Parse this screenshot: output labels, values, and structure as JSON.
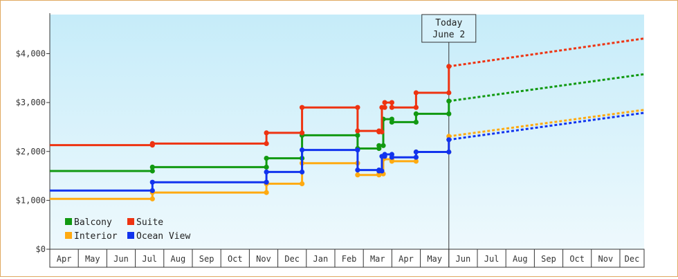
{
  "chart_data": {
    "type": "line",
    "title": "",
    "xlabel": "",
    "ylabel": "",
    "ylim": [
      0,
      4800
    ],
    "y_ticks": [
      {
        "value": 0,
        "label": "$0"
      },
      {
        "value": 1000,
        "label": "$1,000"
      },
      {
        "value": 2000,
        "label": "$2,000"
      },
      {
        "value": 3000,
        "label": "$3,000"
      },
      {
        "value": 4000,
        "label": "$4,000"
      }
    ],
    "x_months": [
      "Apr",
      "May",
      "Jun",
      "Jul",
      "Aug",
      "Sep",
      "Oct",
      "Nov",
      "Dec",
      "Jan",
      "Feb",
      "Mar",
      "Apr",
      "May",
      "Jun",
      "Jul",
      "Aug",
      "Sep",
      "Oct",
      "Nov",
      "Dec"
    ],
    "xlim": [
      0,
      20.85
    ],
    "today": {
      "x": 14.0,
      "label_line1": "Today",
      "label_line2": "June 2"
    },
    "grid": false,
    "legend_position": "bottom-left",
    "series": [
      {
        "name": "Balcony",
        "color": "#119911",
        "points": [
          [
            0,
            1600
          ],
          [
            3.6,
            1600
          ],
          [
            3.6,
            1680
          ],
          [
            7.6,
            1680
          ],
          [
            7.6,
            1860
          ],
          [
            8.85,
            1860
          ],
          [
            8.85,
            2330
          ],
          [
            10.8,
            2330
          ],
          [
            10.8,
            2060
          ],
          [
            11.55,
            2060
          ],
          [
            11.55,
            2120
          ],
          [
            11.7,
            2120
          ],
          [
            11.7,
            2660
          ],
          [
            12,
            2660
          ],
          [
            12,
            2600
          ],
          [
            12.85,
            2600
          ],
          [
            12.85,
            2770
          ],
          [
            14.0,
            2770
          ],
          [
            14.0,
            3030
          ]
        ],
        "projection": [
          [
            14.0,
            3030
          ],
          [
            20.85,
            3580
          ]
        ]
      },
      {
        "name": "Suite",
        "color": "#ee3311",
        "points": [
          [
            0,
            2130
          ],
          [
            3.6,
            2130
          ],
          [
            3.6,
            2160
          ],
          [
            7.6,
            2160
          ],
          [
            7.6,
            2380
          ],
          [
            8.85,
            2380
          ],
          [
            8.85,
            2900
          ],
          [
            10.8,
            2900
          ],
          [
            10.8,
            2420
          ],
          [
            11.55,
            2420
          ],
          [
            11.55,
            2400
          ],
          [
            11.65,
            2400
          ],
          [
            11.65,
            2900
          ],
          [
            11.75,
            2900
          ],
          [
            11.75,
            3000
          ],
          [
            12,
            3000
          ],
          [
            12,
            2900
          ],
          [
            12.85,
            2900
          ],
          [
            12.85,
            3200
          ],
          [
            14.0,
            3200
          ],
          [
            14.0,
            3740
          ]
        ],
        "projection": [
          [
            14.0,
            3740
          ],
          [
            20.85,
            4310
          ]
        ]
      },
      {
        "name": "Interior",
        "color": "#ffaa11",
        "points": [
          [
            0,
            1030
          ],
          [
            3.6,
            1030
          ],
          [
            3.6,
            1160
          ],
          [
            7.6,
            1160
          ],
          [
            7.6,
            1340
          ],
          [
            8.85,
            1340
          ],
          [
            8.85,
            1760
          ],
          [
            10.8,
            1760
          ],
          [
            10.8,
            1520
          ],
          [
            11.55,
            1520
          ],
          [
            11.55,
            1540
          ],
          [
            11.7,
            1540
          ],
          [
            11.7,
            1840
          ],
          [
            12,
            1840
          ],
          [
            12,
            1800
          ],
          [
            12.85,
            1800
          ],
          [
            12.85,
            1990
          ],
          [
            14.0,
            1990
          ],
          [
            14.0,
            2310
          ]
        ],
        "projection": [
          [
            14.0,
            2310
          ],
          [
            20.85,
            2850
          ]
        ]
      },
      {
        "name": "Ocean View",
        "color": "#1133ee",
        "points": [
          [
            0,
            1200
          ],
          [
            3.6,
            1200
          ],
          [
            3.6,
            1370
          ],
          [
            7.6,
            1370
          ],
          [
            7.6,
            1580
          ],
          [
            8.85,
            1580
          ],
          [
            8.85,
            2030
          ],
          [
            10.8,
            2030
          ],
          [
            10.8,
            1620
          ],
          [
            11.55,
            1620
          ],
          [
            11.55,
            1600
          ],
          [
            11.65,
            1600
          ],
          [
            11.65,
            1900
          ],
          [
            11.75,
            1900
          ],
          [
            11.75,
            1940
          ],
          [
            12,
            1940
          ],
          [
            12,
            1880
          ],
          [
            12.85,
            1880
          ],
          [
            12.85,
            1990
          ],
          [
            14.0,
            1990
          ],
          [
            14.0,
            2240
          ]
        ],
        "projection": [
          [
            14.0,
            2240
          ],
          [
            20.85,
            2790
          ]
        ]
      }
    ],
    "legend_rows": [
      [
        "Balcony",
        "Suite"
      ],
      [
        "Interior",
        "Ocean View"
      ]
    ]
  }
}
